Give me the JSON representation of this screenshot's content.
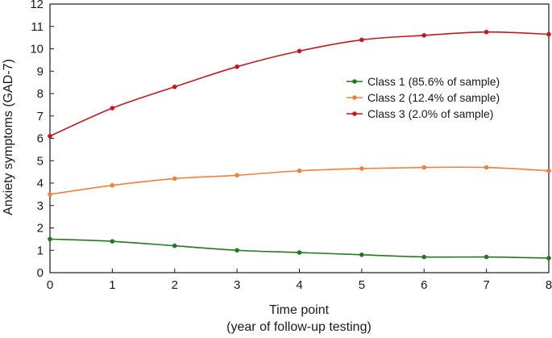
{
  "chart_data": {
    "type": "line",
    "title": "",
    "xlabel_line1": "Time point",
    "xlabel_line2": "(year of follow-up testing)",
    "ylabel": "Anxiety symptoms (GAD-7)",
    "xlim": [
      0,
      8
    ],
    "ylim": [
      0,
      12
    ],
    "x": [
      0,
      1,
      2,
      3,
      4,
      5,
      6,
      7,
      8
    ],
    "x_ticks": [
      0,
      1,
      2,
      3,
      4,
      5,
      6,
      7,
      8
    ],
    "y_ticks": [
      0,
      1,
      2,
      3,
      4,
      5,
      6,
      7,
      8,
      9,
      10,
      11,
      12
    ],
    "grid": false,
    "legend_position": "center-right",
    "series": [
      {
        "name": "Class 1 (85.6% of sample)",
        "color": "#1f7a1f",
        "values": [
          1.5,
          1.4,
          1.2,
          1.0,
          0.9,
          0.8,
          0.7,
          0.7,
          0.65
        ]
      },
      {
        "name": "Class 2 (12.4% of sample)",
        "color": "#f0813a",
        "values": [
          3.5,
          3.9,
          4.2,
          4.35,
          4.55,
          4.65,
          4.7,
          4.7,
          4.55
        ]
      },
      {
        "name": "Class 3 (2.0% of sample)",
        "color": "#c8171c",
        "values": [
          6.1,
          7.35,
          8.3,
          9.2,
          9.9,
          10.4,
          10.6,
          10.75,
          10.65
        ]
      }
    ]
  }
}
